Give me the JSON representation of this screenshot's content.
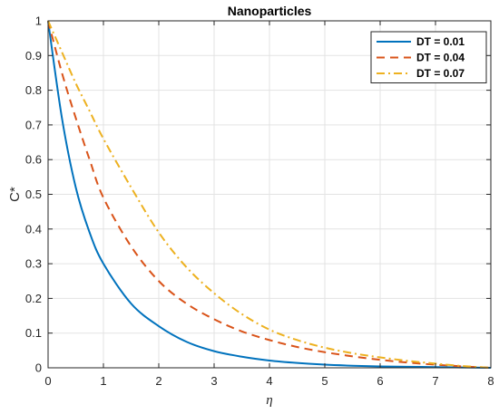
{
  "chart_data": {
    "type": "line",
    "title": "Nanoparticles",
    "xlabel": "η",
    "ylabel": "C*",
    "xlim": [
      0,
      8
    ],
    "ylim": [
      0,
      1
    ],
    "xticks": [
      0,
      1,
      2,
      3,
      4,
      5,
      6,
      7,
      8
    ],
    "yticks": [
      0,
      0.1,
      0.2,
      0.3,
      0.4,
      0.5,
      0.6,
      0.7,
      0.8,
      0.9,
      1
    ],
    "grid": true,
    "legend_position": "top-right",
    "x": [
      0,
      0.25,
      0.5,
      0.75,
      1,
      1.5,
      2,
      2.5,
      3,
      3.5,
      4,
      4.5,
      5,
      5.5,
      6,
      6.5,
      7,
      7.5,
      8
    ],
    "series": [
      {
        "name": "DT = 0.01",
        "color": "#0072BD",
        "style": "solid",
        "values": [
          1.0,
          0.72,
          0.52,
          0.39,
          0.3,
          0.185,
          0.12,
          0.075,
          0.048,
          0.032,
          0.021,
          0.014,
          0.009,
          0.006,
          0.004,
          0.003,
          0.002,
          0.001,
          0.0
        ]
      },
      {
        "name": "DT = 0.04",
        "color": "#D95319",
        "style": "dashed",
        "values": [
          1.0,
          0.85,
          0.72,
          0.6,
          0.49,
          0.35,
          0.25,
          0.185,
          0.14,
          0.105,
          0.08,
          0.06,
          0.045,
          0.033,
          0.023,
          0.015,
          0.009,
          0.004,
          0.0
        ]
      },
      {
        "name": "DT = 0.07",
        "color": "#EDB120",
        "style": "dashdot",
        "values": [
          1.0,
          0.91,
          0.82,
          0.74,
          0.66,
          0.52,
          0.39,
          0.29,
          0.215,
          0.155,
          0.11,
          0.08,
          0.058,
          0.042,
          0.03,
          0.02,
          0.012,
          0.005,
          0.0
        ]
      }
    ]
  }
}
